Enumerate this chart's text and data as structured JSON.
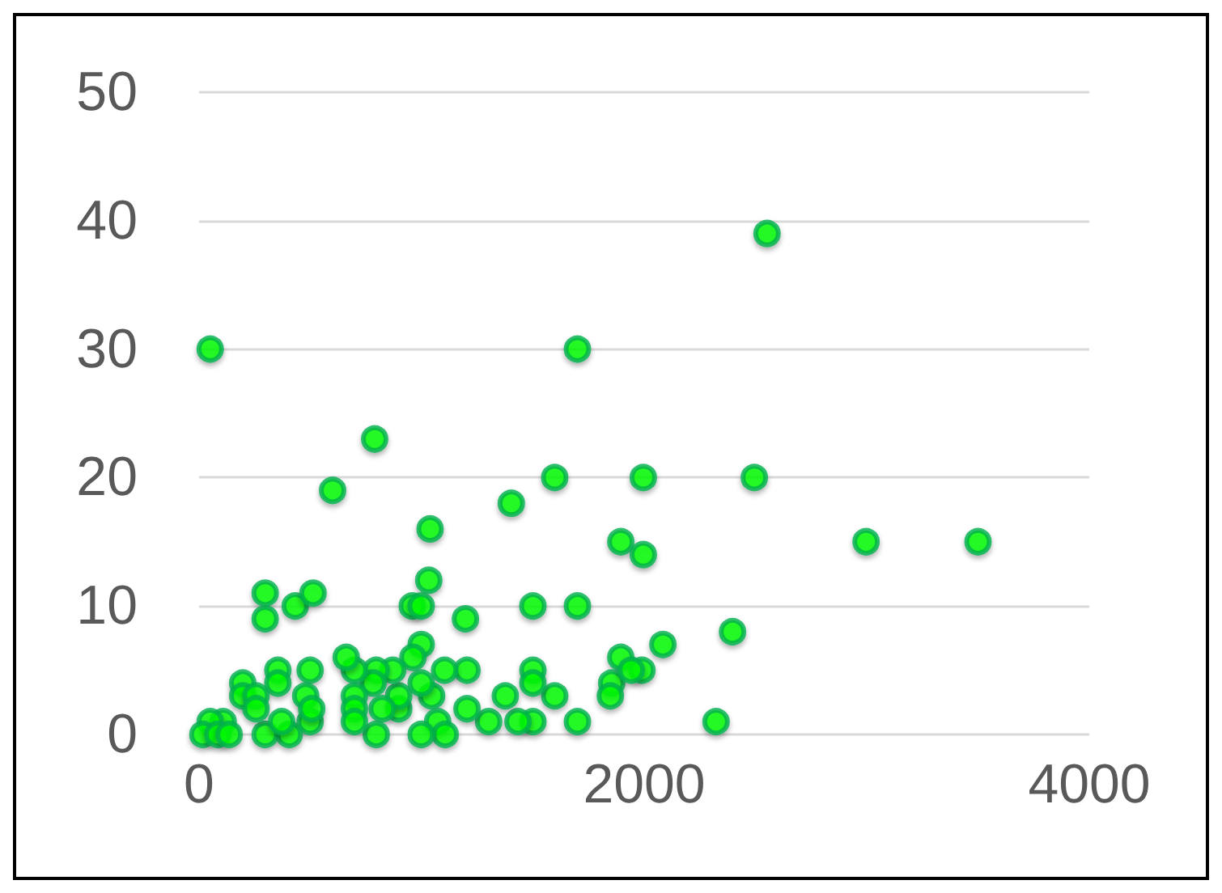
{
  "chart_data": {
    "type": "scatter",
    "xlim": [
      0,
      4000
    ],
    "xticks": [
      0,
      2000,
      4000
    ],
    "ylim": [
      0,
      50
    ],
    "yticks": [
      0,
      10,
      20,
      30,
      40,
      50
    ],
    "grid": "y",
    "marker": "circle",
    "series": [
      {
        "color": "#00ff00",
        "x": [
          50,
          2552,
          1700,
          789,
          600,
          1598,
          1996,
          2495,
          2997,
          3500,
          1895,
          1996,
          1403,
          1038,
          1032,
          958,
          998,
          1197,
          1500,
          1700,
          297,
          297,
          432,
          512,
          2397,
          2084,
          2323,
          1895,
          1854,
          1848,
          1990,
          1942,
          1700,
          1598,
          1500,
          1500,
          1500,
          1433,
          1301,
          1376,
          1204,
          1204,
          1103,
          1045,
          1072,
          1106,
          998,
          998,
          961,
          998,
          897,
          897,
          870,
          796,
          782,
          823,
          796,
          698,
          661,
          698,
          698,
          698,
          499,
          479,
          499,
          506,
          405,
          354,
          354,
          297,
          196,
          196,
          256,
          256,
          371,
          108,
          50,
          17,
          84,
          135
        ],
        "values": [
          30,
          39,
          30,
          23,
          19,
          20,
          20,
          20,
          15,
          15,
          15,
          14,
          18,
          16,
          12,
          10,
          10,
          9,
          10,
          10,
          11,
          9,
          10,
          11,
          8,
          7,
          1,
          6,
          4,
          3,
          5,
          5,
          1,
          3,
          5,
          4,
          1,
          1,
          1,
          3,
          5,
          2,
          5,
          3,
          1,
          0,
          0,
          7,
          6,
          4,
          2,
          3,
          5,
          5,
          4,
          2,
          0,
          5,
          6,
          3,
          2,
          1,
          5,
          3,
          1,
          2,
          0,
          5,
          4,
          0,
          4,
          3,
          3,
          2,
          1,
          1,
          1,
          0,
          0,
          0
        ]
      }
    ]
  }
}
